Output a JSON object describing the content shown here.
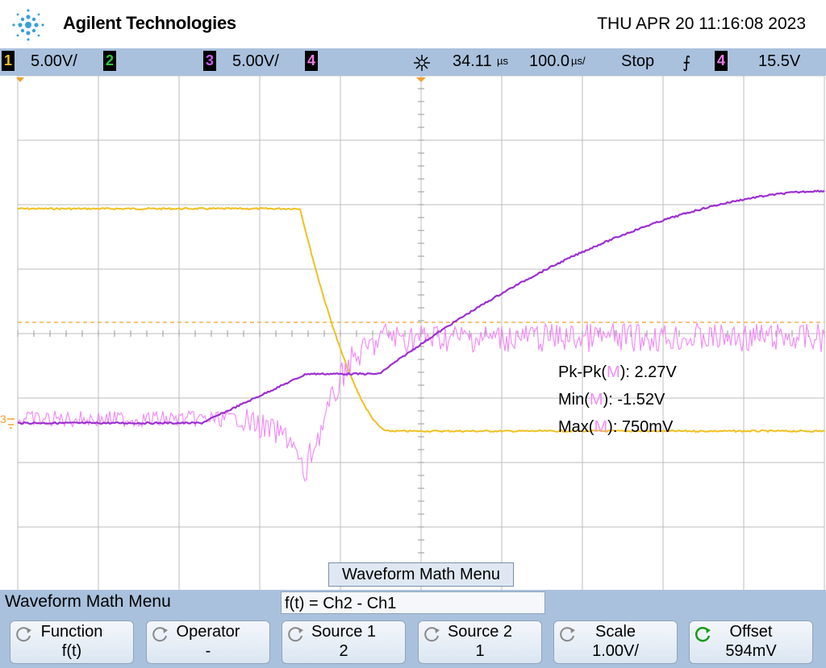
{
  "header": {
    "brand": "Agilent Technologies",
    "datetime": "THU APR 20 11:16:08 2023"
  },
  "status_bar": {
    "ch1": {
      "num": "1",
      "scale": "5.00V/",
      "color": "#f0c020"
    },
    "ch2": {
      "num": "2",
      "color": "#2ec73a"
    },
    "ch3": {
      "num": "3",
      "scale": "5.00V/",
      "color": "#9c2fd1"
    },
    "ch4": {
      "num": "4",
      "color": "#f07ae8"
    },
    "delay": "34.11",
    "delay_unit": "µs",
    "timebase": "100.0",
    "timebase_unit": "µs/",
    "run_state": "Stop",
    "trigger_slope": "⨍",
    "trigger_source": "4",
    "trigger_level": "15.5V"
  },
  "measurements": [
    {
      "name": "Pk-Pk",
      "src": "M",
      "value": ": 2.27V"
    },
    {
      "name": "Min",
      "src": "M",
      "value": ": -1.52V"
    },
    {
      "name": "Max",
      "src": "M",
      "value": ": 750mV"
    }
  ],
  "ground_marker": "3",
  "math_menu_label": "Waveform Math Menu",
  "menu": {
    "title": "Waveform Math Menu",
    "function_expr": "f(t) = Ch2 - Ch1",
    "softkeys": [
      {
        "label": "Function",
        "value": "f(t)",
        "knob": false
      },
      {
        "label": "Operator",
        "value": "-",
        "knob": false
      },
      {
        "label": "Source 1",
        "value": "2",
        "knob": false
      },
      {
        "label": "Source 2",
        "value": "1",
        "knob": false
      },
      {
        "label": "Scale",
        "value": "1.00V/",
        "knob": false
      },
      {
        "label": "Offset",
        "value": "594mV",
        "knob": true
      }
    ]
  },
  "colors": {
    "ch1": "#f0c020",
    "ch3": "#9c2fd1",
    "math": "#f28ef5",
    "grid": "#b0b0b0",
    "trigger_line": "#f0a030",
    "chrome": "#a9c1dd"
  }
}
